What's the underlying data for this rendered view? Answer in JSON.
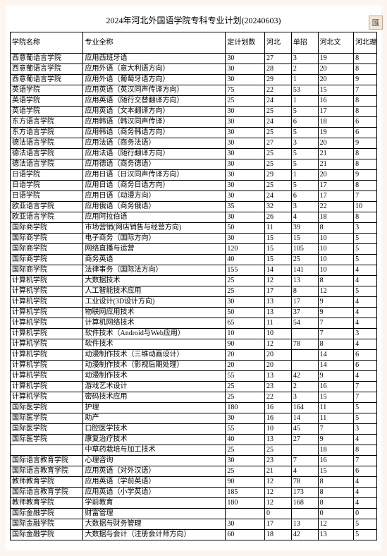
{
  "title": "2024年河北外国语学院专科专业计划(20240603)",
  "sideIcon": "匯",
  "columns": [
    "学院名称",
    "专业全称",
    "定计划数",
    "河北",
    "单招",
    "河北文",
    "河北理"
  ],
  "rows": [
    [
      "西意葡语言学院",
      "应用西班牙语",
      "30",
      "27",
      "3",
      "19",
      "8"
    ],
    [
      "西意葡语言学院",
      "应用外语（意大利语方向）",
      "30",
      "28",
      "2",
      "20",
      "8"
    ],
    [
      "西意葡语言学院",
      "应用外语（葡萄牙语方向）",
      "30",
      "29",
      "1",
      "20",
      "9"
    ],
    [
      "英语学院",
      "应用英语（英汉同声传译方向）",
      "75",
      "22",
      "53",
      "15",
      "7"
    ],
    [
      "英语学院",
      "应用英语（随行交替翻译方向）",
      "25",
      "24",
      "1",
      "16",
      "8"
    ],
    [
      "英语学院",
      "应用英语（文本翻译方向）",
      "30",
      "25",
      "5",
      "17",
      "8"
    ],
    [
      "东方语言学院",
      "应用韩语（韩汉同声传译）",
      "30",
      "24",
      "6",
      "18",
      "6"
    ],
    [
      "东方语言学院",
      "应用韩语（商务韩语方向）",
      "30",
      "25",
      "5",
      "19",
      "6"
    ],
    [
      "德法语言学院",
      "应用法语（商务法语）",
      "30",
      "27",
      "3",
      "20",
      "9"
    ],
    [
      "德法语言学院",
      "应用法语（随行翻译方向）",
      "30",
      "25",
      "5",
      "21",
      "8"
    ],
    [
      "德法语言学院",
      "应用德语（商务德语）",
      "30",
      "25",
      "5",
      "21",
      "8"
    ],
    [
      "日语学院",
      "应用日语（日汉同声传译方向）",
      "30",
      "29",
      "1",
      "20",
      "9"
    ],
    [
      "日语学院",
      "应用日语（商务日语方向）",
      "30",
      "25",
      "5",
      "17",
      "8"
    ],
    [
      "日语学院",
      "应用日语（动漫方向）",
      "30",
      "24",
      "6",
      "17",
      "7"
    ],
    [
      "欧亚语言学院",
      "应用俄语（商务俄语）",
      "35",
      "32",
      "3",
      "22",
      "10"
    ],
    [
      "欧亚语言学院",
      "应用阿拉伯语",
      "30",
      "26",
      "4",
      "18",
      "8"
    ],
    [
      "国际商学院",
      "市场营销(网店销售与经营方向)",
      "50",
      "11",
      "39",
      "8",
      "3"
    ],
    [
      "国际商学院",
      "电子商务（国际方向）",
      "30",
      "15",
      "15",
      "10",
      "5"
    ],
    [
      "国际商学院",
      "网络直播与运营",
      "120",
      "15",
      "105",
      "10",
      "5"
    ],
    [
      "国际商学院",
      "商务英语",
      "40",
      "15",
      "25",
      "10",
      "5"
    ],
    [
      "国际商学院",
      "法律事务（国际法方向）",
      "155",
      "14",
      "141",
      "10",
      "4"
    ],
    [
      "计算机学院",
      "大数据技术",
      "25",
      "12",
      "13",
      "8",
      "4"
    ],
    [
      "计算机学院",
      "人工智能技术应用",
      "25",
      "17",
      "8",
      "12",
      "5"
    ],
    [
      "计算机学院",
      "工业设计(3D设计方向)",
      "30",
      "13",
      "17",
      "9",
      "4"
    ],
    [
      "计算机学院",
      "物联网应用技术",
      "50",
      "13",
      "37",
      "9",
      "4"
    ],
    [
      "计算机学院",
      "计算机网络技术",
      "65",
      "11",
      "54",
      "7",
      "4"
    ],
    [
      "计算机学院",
      "软件技术（Android与Web应用）",
      "10",
      "10",
      "",
      "7",
      "3"
    ],
    [
      "计算机学院",
      "软件技术",
      "90",
      "12",
      "78",
      "8",
      "4"
    ],
    [
      "计算机学院",
      "动漫制作技术（三维动画设计）",
      "20",
      "20",
      "",
      "14",
      "6"
    ],
    [
      "计算机学院",
      "动漫制作技术（影视后期处理）",
      "20",
      "20",
      "",
      "14",
      "6"
    ],
    [
      "计算机学院",
      "动漫制作技术",
      "55",
      "13",
      "42",
      "9",
      "4"
    ],
    [
      "计算机学院",
      "游戏艺术设计",
      "25",
      "23",
      "2",
      "16",
      "7"
    ],
    [
      "计算机学院",
      "密码技术应用",
      "25",
      "22",
      "3",
      "15",
      "7"
    ],
    [
      "国际医学院",
      "护理",
      "180",
      "16",
      "164",
      "11",
      "5"
    ],
    [
      "国际医学院",
      "助产",
      "30",
      "16",
      "14",
      "11",
      "5"
    ],
    [
      "国际医学院",
      "口腔医学技术",
      "55",
      "10",
      "45",
      "7",
      "3"
    ],
    [
      "国际医学院",
      "康复治疗技术",
      "40",
      "13",
      "27",
      "9",
      "4"
    ],
    [
      "",
      "中草药栽培与加工技术",
      "25",
      "25",
      "",
      "18",
      "8"
    ],
    [
      "国际语言教育学院",
      "心理咨询",
      "30",
      "23",
      "7",
      "16",
      "7"
    ],
    [
      "国际语言教育学院",
      "应用英语（对外汉语）",
      "25",
      "21",
      "4",
      "15",
      "6"
    ],
    [
      "教师教育学院",
      "应用英语（学前英语）",
      "90",
      "12",
      "78",
      "8",
      "4"
    ],
    [
      "国际语言教育学院",
      "应用英语（小学英语）",
      "185",
      "12",
      "173",
      "8",
      "4"
    ],
    [
      "教师教育学院",
      "学前教育",
      "180",
      "12",
      "168",
      "8",
      "4"
    ],
    [
      "国际金融学院",
      "财富管理",
      "",
      "0",
      "",
      "0",
      "0"
    ],
    [
      "国际金融学院",
      "大数据与财务管理",
      "30",
      "17",
      "13",
      "12",
      "5"
    ],
    [
      "国际金融学院",
      "大数据与会计（注册会计师方向）",
      "60",
      "18",
      "42",
      "13",
      "5"
    ]
  ]
}
